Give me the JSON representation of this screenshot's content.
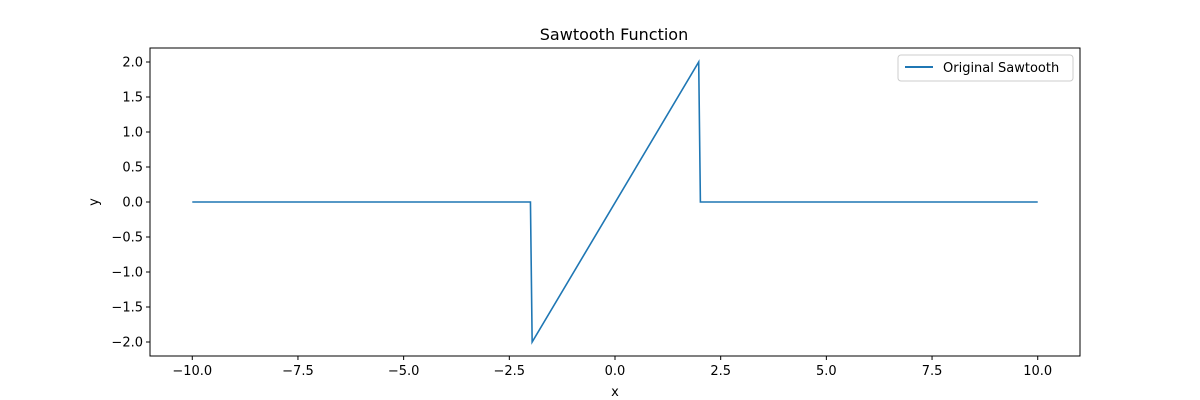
{
  "chart_data": {
    "type": "line",
    "title": "Sawtooth Function",
    "xlabel": "x",
    "ylabel": "y",
    "xlim": [
      -11.0,
      11.0
    ],
    "ylim": [
      -2.2,
      2.2
    ],
    "xticks": [
      -10.0,
      -7.5,
      -5.0,
      -2.5,
      0.0,
      2.5,
      5.0,
      7.5,
      10.0
    ],
    "xtick_labels": [
      "−10.0",
      "−7.5",
      "−5.0",
      "−2.5",
      "0.0",
      "2.5",
      "5.0",
      "7.5",
      "10.0"
    ],
    "yticks": [
      -2.0,
      -1.5,
      -1.0,
      -0.5,
      0.0,
      0.5,
      1.0,
      1.5,
      2.0
    ],
    "ytick_labels": [
      "−2.0",
      "−1.5",
      "−1.0",
      "−0.5",
      "0.0",
      "0.5",
      "1.0",
      "1.5",
      "2.0"
    ],
    "grid": false,
    "legend_position": "top-right",
    "series": [
      {
        "name": "Original Sawtooth",
        "color": "#1f77b4",
        "x": [
          -10.0,
          -2.0,
          -1.96,
          1.98,
          2.02,
          10.0
        ],
        "y": [
          0.0,
          0.0,
          -2.0,
          2.0,
          0.0,
          0.0
        ]
      }
    ]
  }
}
